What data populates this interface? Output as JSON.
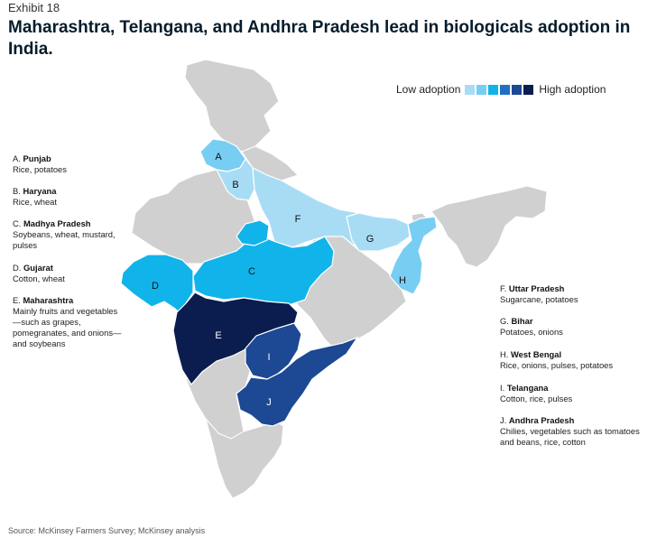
{
  "header": {
    "exhibit": "Exhibit 18",
    "title": "Maharashtra, Telangana, and Andhra Pradesh lead in biologicals adoption in India."
  },
  "legend": {
    "low_label": "Low adoption",
    "high_label": "High adoption",
    "colors": [
      "#a8dcf5",
      "#78cdf2",
      "#10b4ea",
      "#1f70c4",
      "#1c4894",
      "#0b1d4f"
    ]
  },
  "map_colors": {
    "base": "#d0d0d0",
    "border": "#ffffff"
  },
  "states": [
    {
      "letter": "A",
      "name": "Punjab",
      "crops": "Rice, potatoes",
      "level": 2
    },
    {
      "letter": "B",
      "name": "Haryana",
      "crops": "Rice, wheat",
      "level": 1
    },
    {
      "letter": "C",
      "name": "Madhya Pradesh",
      "crops": "Soybeans, wheat, mustard, pulses",
      "level": 3
    },
    {
      "letter": "D",
      "name": "Gujarat",
      "crops": "Cotton, wheat",
      "level": 3
    },
    {
      "letter": "E",
      "name": "Maharashtra",
      "crops": "Mainly fruits and vegetables—such as grapes, pomegranates, and onions—and soybeans",
      "level": 6
    },
    {
      "letter": "F",
      "name": "Uttar Pradesh",
      "crops": "Sugarcane, potatoes",
      "level": 1
    },
    {
      "letter": "G",
      "name": "Bihar",
      "crops": "Potatoes, onions",
      "level": 1
    },
    {
      "letter": "H",
      "name": "West Bengal",
      "crops": "Rice, onions, pulses, potatoes",
      "level": 2
    },
    {
      "letter": "I",
      "name": "Telangana",
      "crops": "Cotton, rice, pulses",
      "level": 5
    },
    {
      "letter": "J",
      "name": "Andhra Pradesh",
      "crops": "Chilies, vegetables such as tomatoes and beans, rice, cotton",
      "level": 5
    }
  ],
  "source": "Source: McKinsey Farmers Survey; McKinsey analysis"
}
